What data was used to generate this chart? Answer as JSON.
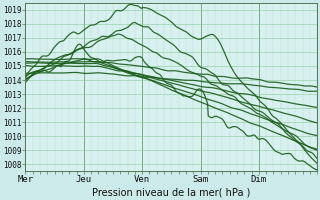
{
  "xlabel": "Pression niveau de la mer( hPa )",
  "bg_color": "#cceaea",
  "plot_bg_color": "#d8f0f0",
  "grid_color": "#88cc99",
  "line_color": "#1a5c1a",
  "ylim": [
    1007.5,
    1019.5
  ],
  "yticks": [
    1008,
    1009,
    1010,
    1011,
    1012,
    1013,
    1014,
    1015,
    1016,
    1017,
    1018,
    1019
  ],
  "xtick_labels": [
    "Mer",
    "Jeu",
    "Ven",
    "Sam",
    "Dim"
  ],
  "xtick_positions": [
    0,
    24,
    48,
    72,
    96
  ],
  "total_hours": 120
}
